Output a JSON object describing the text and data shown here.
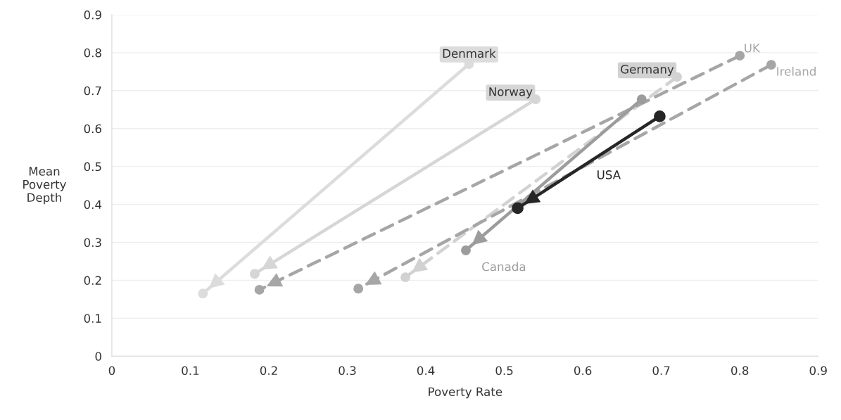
{
  "chart_data": {
    "type": "line",
    "xlabel": "Poverty Rate",
    "ylabel": "Mean\nPoverty\nDepth",
    "xlim": [
      0,
      0.9
    ],
    "xticks": [
      0,
      0.1,
      0.2,
      0.3,
      0.4,
      0.5,
      0.6,
      0.7,
      0.8,
      0.9
    ],
    "ylim": [
      0,
      0.9
    ],
    "yticks": [
      0,
      0.1,
      0.2,
      0.3,
      0.4,
      0.5,
      0.6,
      0.7,
      0.8,
      0.9
    ],
    "grid": "y",
    "legend": false,
    "marker": "circle",
    "series": [
      {
        "name": "Denmark",
        "color": "#dcdcdc",
        "line_style": "solid",
        "x": [
          0.455,
          0.116
        ],
        "values": [
          0.77,
          0.165
        ]
      },
      {
        "name": "Norway",
        "color": "#d6d6d6",
        "line_style": "solid",
        "x": [
          0.54,
          0.182
        ],
        "values": [
          0.677,
          0.217
        ]
      },
      {
        "name": "Germany",
        "color": "#d2d2d2",
        "line_style": "dashed",
        "x": [
          0.72,
          0.374
        ],
        "values": [
          0.736,
          0.208
        ]
      },
      {
        "name": "UK",
        "color": "#a6a6a6",
        "line_style": "dashed",
        "x": [
          0.8,
          0.188
        ],
        "values": [
          0.792,
          0.175
        ]
      },
      {
        "name": "Ireland",
        "color": "#a6a6a6",
        "line_style": "dashed",
        "x": [
          0.84,
          0.314
        ],
        "values": [
          0.768,
          0.178
        ]
      },
      {
        "name": "Canada",
        "color": "#9c9c9c",
        "line_style": "solid",
        "x": [
          0.675,
          0.451
        ],
        "values": [
          0.677,
          0.279
        ]
      },
      {
        "name": "USA",
        "color": "#262626",
        "line_style": "solid",
        "x": [
          0.698,
          0.517
        ],
        "values": [
          0.632,
          0.39
        ]
      }
    ]
  }
}
